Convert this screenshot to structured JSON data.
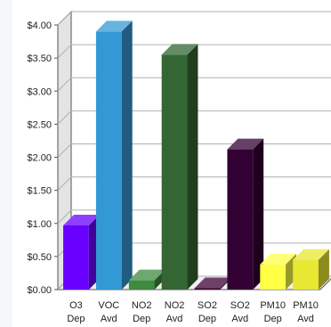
{
  "chart_data": {
    "type": "bar",
    "style": "3d",
    "title": "",
    "xlabel": "",
    "ylabel": "",
    "ylim": [
      0,
      4
    ],
    "y_ticks": [
      "$0.00",
      "$0.50",
      "$1.00",
      "$1.50",
      "$2.00",
      "$2.50",
      "$3.00",
      "$3.50",
      "$4.00"
    ],
    "y_tick_values": [
      0,
      0.5,
      1,
      1.5,
      2,
      2.5,
      3,
      3.5,
      4
    ],
    "grid": true,
    "legend": "none",
    "categories": [
      {
        "line1": "O3",
        "line2": "Dep"
      },
      {
        "line1": "VOC",
        "line2": "Avd"
      },
      {
        "line1": "NO2",
        "line2": "Dep"
      },
      {
        "line1": "NO2",
        "line2": "Avd"
      },
      {
        "line1": "SO2",
        "line2": "Dep"
      },
      {
        "line1": "SO2",
        "line2": "Avd"
      },
      {
        "line1": "PM10",
        "line2": "Dep"
      },
      {
        "line1": "PM10",
        "line2": "Avd"
      }
    ],
    "values": [
      0.97,
      3.9,
      0.14,
      3.55,
      0.02,
      2.12,
      0.38,
      0.45
    ],
    "colors": [
      "#6a00ff",
      "#3399d4",
      "#3e8a40",
      "#336633",
      "#3d0038",
      "#330033",
      "#ffff44",
      "#e8e833"
    ]
  }
}
